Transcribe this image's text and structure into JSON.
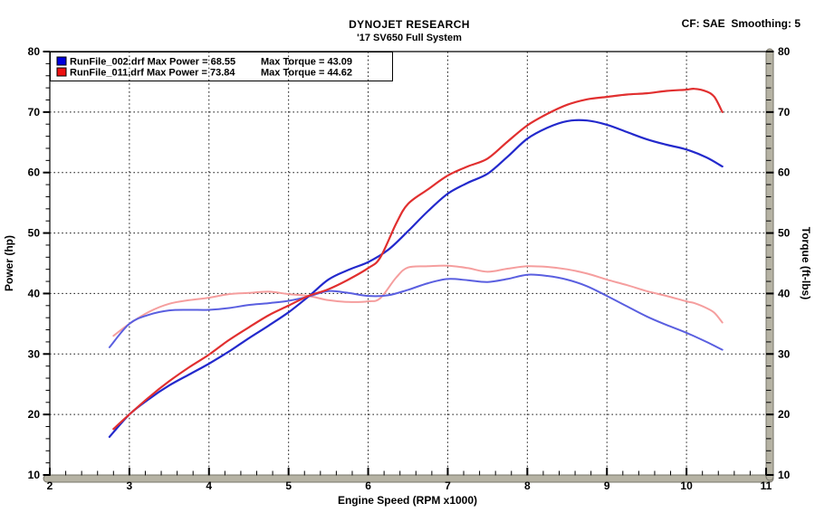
{
  "header": {
    "title": "DYNOJET RESEARCH",
    "subtitle": "'17 SV650 Full System",
    "correction": "CF: SAE  Smoothing: 5"
  },
  "chart_data": {
    "type": "line",
    "title": "DYNOJET RESEARCH",
    "subtitle": "'17 SV650 Full System",
    "correction_factor": "CF: SAE",
    "smoothing": "5",
    "xlabel": "Engine Speed (RPM x1000)",
    "ylabel_left": "Power (hp)",
    "ylabel_right": "Torque (ft-lbs)",
    "x_range": [
      2,
      11
    ],
    "y_range": [
      10,
      80
    ],
    "x_major_ticks": [
      2,
      3,
      4,
      5,
      6,
      7,
      8,
      9,
      10,
      11
    ],
    "x_minor_step": 0.2,
    "y_major_ticks": [
      10,
      20,
      30,
      40,
      50,
      60,
      70,
      80
    ],
    "y_minor_step": 2,
    "grid": "dashed black lines at every major tick, both axes",
    "legend_position": "top-left, attached to plot corner, transparent fill",
    "legend": [
      {
        "label": "RunFile_002.drf Max Power = 68.55",
        "torque_label": "Max Torque = 43.09",
        "swatch_color": "#0000dd",
        "max_power": 68.55,
        "max_torque": 43.09
      },
      {
        "label": "RunFile_011.drf Max Power = 73.84",
        "torque_label": "Max Torque = 44.62",
        "swatch_color": "#ee1111",
        "max_power": 73.84,
        "max_torque": 44.62
      }
    ],
    "series": [
      {
        "name": "RunFile_011 Torque (ft-lbs)",
        "axis": "right",
        "color": "#f59e9e",
        "width": 2,
        "x": [
          2.8,
          3.0,
          3.25,
          3.5,
          3.75,
          4.0,
          4.25,
          4.5,
          4.75,
          5.0,
          5.25,
          5.5,
          5.75,
          6.0,
          6.15,
          6.35,
          6.5,
          6.75,
          7.0,
          7.25,
          7.5,
          7.75,
          8.0,
          8.25,
          8.5,
          8.75,
          9.0,
          9.25,
          9.5,
          9.75,
          10.0,
          10.1,
          10.25,
          10.35,
          10.45
        ],
        "y": [
          33.0,
          35.0,
          37.0,
          38.3,
          38.9,
          39.3,
          39.9,
          40.1,
          40.3,
          39.9,
          39.6,
          38.9,
          38.6,
          38.7,
          39.2,
          42.6,
          44.3,
          44.5,
          44.6,
          44.2,
          43.6,
          44.1,
          44.5,
          44.4,
          44.0,
          43.3,
          42.3,
          41.4,
          40.4,
          39.6,
          38.7,
          38.4,
          37.6,
          36.8,
          35.2
        ]
      },
      {
        "name": "RunFile_002 Torque (ft-lbs)",
        "axis": "right",
        "color": "#5a5fe0",
        "width": 2,
        "x": [
          2.75,
          3.0,
          3.25,
          3.5,
          3.75,
          4.0,
          4.25,
          4.5,
          4.75,
          5.0,
          5.25,
          5.5,
          5.75,
          6.0,
          6.25,
          6.5,
          6.75,
          7.0,
          7.25,
          7.5,
          7.75,
          8.0,
          8.25,
          8.5,
          8.75,
          9.0,
          9.25,
          9.5,
          9.75,
          10.0,
          10.25,
          10.45
        ],
        "y": [
          31.1,
          35.0,
          36.5,
          37.2,
          37.3,
          37.3,
          37.6,
          38.1,
          38.4,
          38.8,
          39.5,
          40.4,
          40.1,
          39.6,
          39.7,
          40.6,
          41.7,
          42.4,
          42.2,
          41.9,
          42.4,
          43.1,
          42.9,
          42.3,
          41.2,
          39.6,
          37.9,
          36.2,
          34.8,
          33.5,
          32.0,
          30.7
        ]
      },
      {
        "name": "RunFile_002 Power (hp)",
        "axis": "left",
        "color": "#2329cc",
        "width": 2.2,
        "x": [
          2.75,
          3.0,
          3.25,
          3.5,
          3.75,
          4.0,
          4.25,
          4.5,
          4.75,
          5.0,
          5.25,
          5.5,
          5.75,
          6.0,
          6.25,
          6.5,
          6.75,
          7.0,
          7.25,
          7.5,
          7.75,
          8.0,
          8.25,
          8.5,
          8.75,
          9.0,
          9.25,
          9.5,
          9.75,
          10.0,
          10.25,
          10.45
        ],
        "y": [
          16.3,
          20.0,
          22.6,
          24.8,
          26.6,
          28.4,
          30.4,
          32.6,
          34.7,
          36.9,
          39.5,
          42.3,
          43.9,
          45.2,
          47.2,
          50.3,
          53.6,
          56.5,
          58.3,
          59.8,
          62.6,
          65.6,
          67.4,
          68.5,
          68.6,
          67.9,
          66.7,
          65.5,
          64.6,
          63.8,
          62.5,
          61.0
        ]
      },
      {
        "name": "RunFile_011 Power (hp)",
        "axis": "left",
        "color": "#e12f2f",
        "width": 2.2,
        "x": [
          2.8,
          3.0,
          3.25,
          3.5,
          3.75,
          4.0,
          4.25,
          4.5,
          4.75,
          5.0,
          5.25,
          5.5,
          5.75,
          6.0,
          6.15,
          6.35,
          6.5,
          6.75,
          7.0,
          7.25,
          7.5,
          7.75,
          8.0,
          8.25,
          8.5,
          8.75,
          9.0,
          9.25,
          9.5,
          9.75,
          10.0,
          10.1,
          10.25,
          10.35,
          10.45
        ],
        "y": [
          17.6,
          20.0,
          22.9,
          25.5,
          27.8,
          29.9,
          32.3,
          34.4,
          36.4,
          38.0,
          39.6,
          40.7,
          42.3,
          44.2,
          45.9,
          51.5,
          54.8,
          57.2,
          59.5,
          61.0,
          62.3,
          65.1,
          67.8,
          69.7,
          71.2,
          72.1,
          72.5,
          72.9,
          73.1,
          73.5,
          73.7,
          73.84,
          73.4,
          72.5,
          70.0
        ]
      }
    ],
    "styles": {
      "axis_bar_fill": "#b6b3a4",
      "axis_bar_stroke": "#77746a",
      "grid_color": "#1a1a1a",
      "frame_color": "#000000"
    }
  }
}
